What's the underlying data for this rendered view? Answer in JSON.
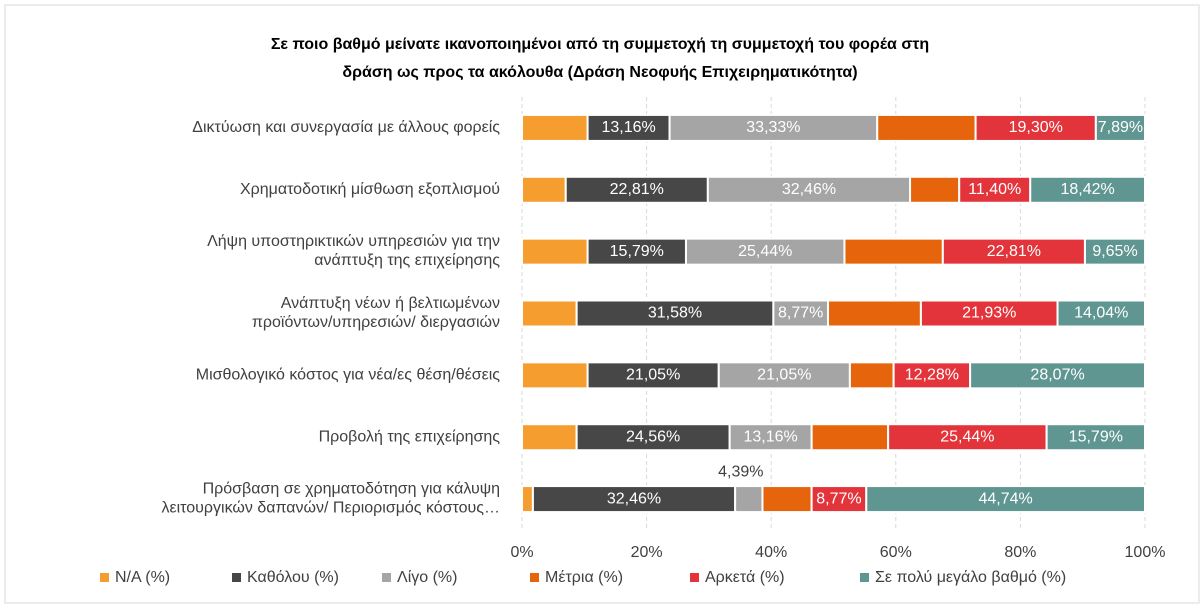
{
  "chart_data": {
    "type": "stacked-barh",
    "title": [
      "Σε ποιο βαθμό μείνατε ικανοποιημένοι από τη συμμετοχή τη συμμετοχή του φορέα στη",
      "δράση ως προς τα ακόλουθα (Δράση Νεοφυής Επιχειρηματικότητα)"
    ],
    "categories": [
      "Δικτύωση και συνεργασία με άλλους φορείς",
      "Χρηματοδοτική μίσθωση εξοπλισμού",
      "Λήψη υποστηρικτικών υπηρεσιών για την\nανάπτυξη της επιχείρησης",
      "Ανάπτυξη νέων ή βελτιωμένων\nπροϊόντων/υπηρεσιών/ διεργασιών",
      "Μισθολογικό κόστος για νέα/ες θέση/θέσεις",
      "Προβολή της επιχείρησης",
      "Πρόσβαση σε χρηματοδότηση  για κάλυψη\nλειτουργικών δαπανών/ Περιορισμός κόστους…"
    ],
    "series": [
      {
        "name": "N/A (%)",
        "color": "#f59d2f",
        "values": [
          10.53,
          7.02,
          10.53,
          8.77,
          10.53,
          8.77,
          1.75
        ],
        "value_labels": [
          null,
          null,
          null,
          null,
          null,
          null,
          null
        ]
      },
      {
        "name": "Καθόλου (%)",
        "color": "#474747",
        "values": [
          13.16,
          22.81,
          15.79,
          31.58,
          21.05,
          24.56,
          32.46
        ],
        "value_labels": [
          "13,16%",
          "22,81%",
          "15,79%",
          "31,58%",
          "21,05%",
          "24,56%",
          "32,46%"
        ]
      },
      {
        "name": "Λίγο (%)",
        "color": "#a5a5a5",
        "values": [
          33.33,
          32.46,
          25.44,
          8.77,
          21.05,
          13.16,
          4.39
        ],
        "value_labels": [
          "33,33%",
          "32,46%",
          "25,44%",
          "8,77%",
          "21,05%",
          "13,16%",
          "4,39%"
        ]
      },
      {
        "name": "Μέτρια (%)",
        "color": "#e6650c",
        "values": [
          15.79,
          7.89,
          15.79,
          14.91,
          7.02,
          12.28,
          7.89
        ],
        "value_labels": [
          null,
          null,
          null,
          null,
          null,
          null,
          null
        ]
      },
      {
        "name": "Αρκετά (%)",
        "color": "#e2343a",
        "values": [
          19.3,
          11.4,
          22.81,
          21.93,
          12.28,
          25.44,
          8.77
        ],
        "value_labels": [
          "19,30%",
          "11,40%",
          "22,81%",
          "21,93%",
          "12,28%",
          "25,44%",
          "8,77%"
        ]
      },
      {
        "name": "Σε πολύ μεγάλο βαθμό (%)",
        "color": "#5f9691",
        "values": [
          7.89,
          18.42,
          9.65,
          14.04,
          28.07,
          15.79,
          44.74
        ],
        "value_labels": [
          "7,89%",
          "18,42%",
          "9,65%",
          "14,04%",
          "28,07%",
          "15,79%",
          "44,74%"
        ]
      }
    ],
    "xlim": [
      0,
      100
    ],
    "xticks": [
      {
        "value": 0,
        "label": "0%"
      },
      {
        "value": 20,
        "label": "20%"
      },
      {
        "value": 40,
        "label": "40%"
      },
      {
        "value": 60,
        "label": "60%"
      },
      {
        "value": 80,
        "label": "80%"
      },
      {
        "value": 100,
        "label": "100%"
      }
    ],
    "grid": true,
    "legend": "bottom"
  }
}
